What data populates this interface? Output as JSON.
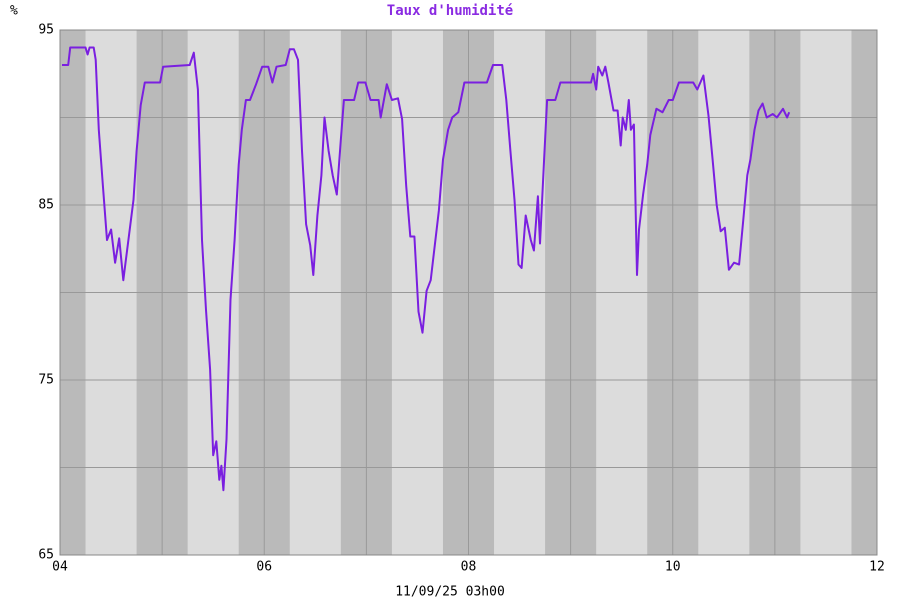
{
  "chart_data": {
    "type": "line",
    "title": "Taux d'humidité",
    "ylabel": "%",
    "xlabel": "11/09/25 03h00",
    "xlim": [
      4,
      12
    ],
    "ylim": [
      65,
      95
    ],
    "xticks": [
      {
        "value": 4,
        "label": "04"
      },
      {
        "value": 6,
        "label": "06"
      },
      {
        "value": 8,
        "label": "08"
      },
      {
        "value": 10,
        "label": "10"
      },
      {
        "value": 12,
        "label": "12"
      }
    ],
    "minor_xticks": [
      5,
      7,
      9,
      11
    ],
    "yticks": [
      65,
      75,
      85,
      95
    ],
    "minor_yticks": [
      70,
      80,
      90
    ],
    "grid": true,
    "background_color": "#dcdcdc",
    "band_color": "#bababa",
    "night_bands": [
      [
        3.75,
        4.25
      ],
      [
        4.75,
        5.25
      ],
      [
        5.75,
        6.25
      ],
      [
        6.75,
        7.25
      ],
      [
        7.75,
        8.25
      ],
      [
        8.75,
        9.25
      ],
      [
        9.75,
        10.25
      ],
      [
        10.75,
        11.25
      ],
      [
        11.75,
        12.25
      ]
    ],
    "series": [
      {
        "color": "#7a1fe0",
        "x": [
          4.02,
          4.08,
          4.1,
          4.25,
          4.27,
          4.29,
          4.33,
          4.35,
          4.38,
          4.42,
          4.46,
          4.5,
          4.54,
          4.58,
          4.62,
          4.67,
          4.72,
          4.75,
          4.79,
          4.83,
          4.98,
          5.01,
          5.27,
          5.31,
          5.35,
          5.39,
          5.43,
          5.47,
          5.5,
          5.53,
          5.56,
          5.58,
          5.6,
          5.63,
          5.67,
          5.71,
          5.75,
          5.78,
          5.82,
          5.86,
          5.92,
          5.98,
          6.04,
          6.08,
          6.12,
          6.21,
          6.25,
          6.29,
          6.33,
          6.37,
          6.41,
          6.45,
          6.48,
          6.52,
          6.56,
          6.59,
          6.63,
          6.67,
          6.71,
          6.75,
          6.78,
          6.88,
          6.92,
          6.99,
          7.04,
          7.12,
          7.14,
          7.2,
          7.25,
          7.31,
          7.35,
          7.39,
          7.43,
          7.47,
          7.51,
          7.55,
          7.59,
          7.63,
          7.67,
          7.71,
          7.75,
          7.8,
          7.84,
          7.9,
          7.96,
          8.18,
          8.24,
          8.33,
          8.37,
          8.41,
          8.45,
          8.49,
          8.52,
          8.56,
          8.61,
          8.64,
          8.68,
          8.7,
          8.74,
          8.77,
          8.85,
          8.9,
          9.2,
          9.22,
          9.25,
          9.27,
          9.31,
          9.34,
          9.37,
          9.42,
          9.46,
          9.49,
          9.51,
          9.54,
          9.57,
          9.59,
          9.62,
          9.65,
          9.67,
          9.71,
          9.75,
          9.78,
          9.84,
          9.9,
          9.96,
          10.0,
          10.06,
          10.2,
          10.24,
          10.3,
          10.35,
          10.39,
          10.43,
          10.47,
          10.51,
          10.55,
          10.6,
          10.65,
          10.69,
          10.73,
          10.76,
          10.8,
          10.84,
          10.88,
          10.92,
          10.98,
          11.02,
          11.08,
          11.12,
          11.14
        ],
        "values": [
          93.0,
          93.0,
          94.0,
          94.0,
          93.6,
          94.0,
          94.0,
          93.3,
          89.3,
          86.1,
          83.0,
          83.6,
          81.7,
          83.1,
          80.7,
          83.0,
          85.3,
          88.1,
          90.7,
          92.0,
          92.0,
          92.9,
          93.0,
          93.7,
          91.6,
          83.0,
          79.0,
          75.6,
          70.7,
          71.5,
          69.3,
          70.1,
          68.7,
          71.6,
          79.6,
          83.0,
          87.3,
          89.3,
          91.0,
          91.0,
          91.9,
          92.9,
          92.9,
          92.0,
          92.9,
          93.0,
          93.9,
          93.9,
          93.3,
          88.1,
          83.9,
          82.7,
          81.0,
          84.4,
          86.7,
          90.0,
          88.1,
          86.7,
          85.6,
          88.7,
          91.0,
          91.0,
          92.0,
          92.0,
          91.0,
          91.0,
          90.0,
          91.9,
          91.0,
          91.1,
          89.9,
          86.1,
          83.2,
          83.2,
          78.9,
          77.7,
          80.1,
          80.7,
          82.7,
          84.7,
          87.6,
          89.3,
          90.0,
          90.3,
          92.0,
          92.0,
          93.0,
          93.0,
          91.0,
          88.1,
          85.3,
          81.6,
          81.4,
          84.4,
          83.0,
          82.4,
          85.5,
          82.8,
          87.6,
          91.0,
          91.0,
          92.0,
          92.0,
          92.5,
          91.6,
          92.9,
          92.4,
          92.9,
          92.0,
          90.4,
          90.4,
          88.4,
          90.0,
          89.3,
          91.0,
          89.3,
          89.6,
          81.0,
          83.6,
          85.6,
          87.3,
          89.0,
          90.5,
          90.3,
          91.0,
          91.0,
          92.0,
          92.0,
          91.6,
          92.4,
          90.1,
          87.6,
          85.0,
          83.5,
          83.7,
          81.3,
          81.7,
          81.6,
          84.1,
          86.7,
          87.6,
          89.3,
          90.4,
          90.8,
          90.0,
          90.2,
          90.0,
          90.5,
          90.0,
          90.3
        ]
      }
    ]
  }
}
